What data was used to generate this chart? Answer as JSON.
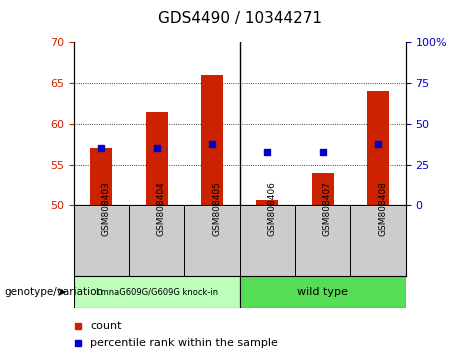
{
  "title": "GDS4490 / 10344271",
  "samples": [
    "GSM808403",
    "GSM808404",
    "GSM808405",
    "GSM808406",
    "GSM808407",
    "GSM808408"
  ],
  "bar_values": [
    57.0,
    61.5,
    66.0,
    50.7,
    54.0,
    64.0
  ],
  "bar_base": 50,
  "percentile_values": [
    57.0,
    57.0,
    57.5,
    56.5,
    56.6,
    57.5
  ],
  "left_ylim": [
    50,
    70
  ],
  "left_yticks": [
    50,
    55,
    60,
    65,
    70
  ],
  "right_ylim": [
    0,
    100
  ],
  "right_yticks": [
    0,
    25,
    50,
    75,
    100
  ],
  "right_yticklabels": [
    "0",
    "25",
    "50",
    "75",
    "100%"
  ],
  "bar_color": "#cc2200",
  "percentile_color": "#0000cc",
  "group1_label": "LmnaG609G/G609G knock-in",
  "group2_label": "wild type",
  "group1_color": "#bbffbb",
  "group2_color": "#55dd55",
  "group1_indices": [
    0,
    1,
    2
  ],
  "group2_indices": [
    3,
    4,
    5
  ],
  "legend_count_label": "count",
  "legend_percentile_label": "percentile rank within the sample",
  "xlabel_label": "genotype/variation",
  "left_ytick_color": "#cc2200",
  "right_ytick_color": "#0000cc",
  "grid_yticks": [
    55,
    60,
    65
  ],
  "title_fontsize": 11,
  "bar_width": 0.4,
  "sample_area_bg": "#cccccc",
  "title_color": "black"
}
